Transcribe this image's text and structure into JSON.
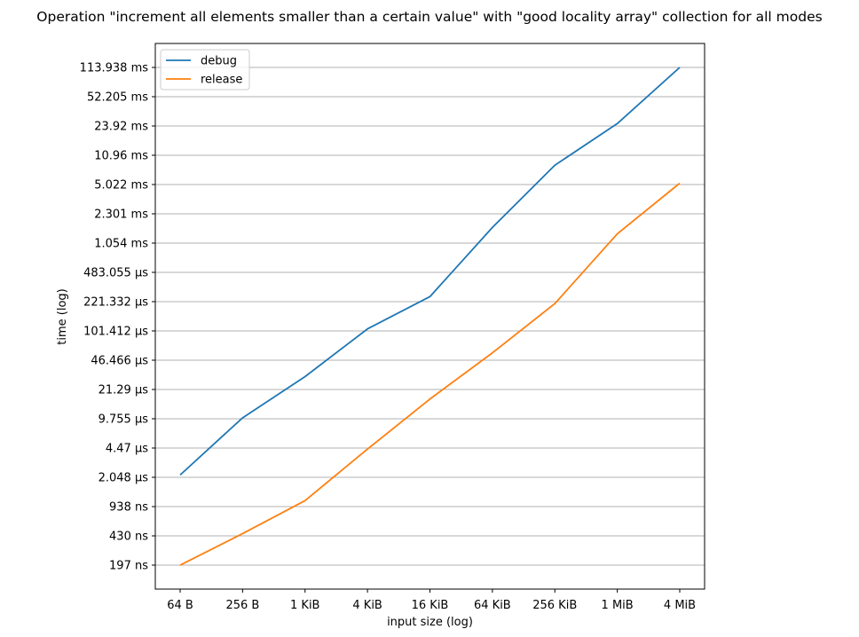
{
  "chart_data": {
    "type": "line",
    "title": "Operation \"increment all elements smaller than a certain value\" with \"good locality array\" collection for all modes",
    "xlabel": "input size (log)",
    "ylabel": "time (log)",
    "x_scale": "log",
    "y_scale": "log",
    "categories": [
      "64 B",
      "256 B",
      "1 KiB",
      "4 KiB",
      "16 KiB",
      "64 KiB",
      "256 KiB",
      "1 MiB",
      "4 MiB"
    ],
    "y_ticks_ns": [
      197,
      430,
      938,
      2048,
      4470,
      9755,
      21290,
      46466,
      101412,
      221332,
      483055,
      1054000,
      2301000,
      5022000,
      10960000,
      23920000,
      52205000,
      113938000
    ],
    "y_tick_labels": [
      "197 ns",
      "430 ns",
      "938 ns",
      "2.048 µs",
      "4.47 µs",
      "9.755 µs",
      "21.29 µs",
      "46.466 µs",
      "101.412 µs",
      "221.332 µs",
      "483.055 µs",
      "1.054 ms",
      "2.301 ms",
      "5.022 ms",
      "10.96 ms",
      "23.92 ms",
      "52.205 ms",
      "113.938 ms"
    ],
    "grid": "y-major",
    "legend_position": "top-left",
    "series": [
      {
        "name": "debug",
        "color": "#1f77b4",
        "values_ns": [
          2180,
          10000,
          30000,
          107000,
          253000,
          1600000,
          8400000,
          25500000,
          113938000
        ]
      },
      {
        "name": "release",
        "color": "#ff7f0e",
        "values_ns": [
          197,
          457,
          1100,
          4350,
          16500,
          56500,
          210000,
          1350000,
          5200000
        ]
      }
    ]
  }
}
